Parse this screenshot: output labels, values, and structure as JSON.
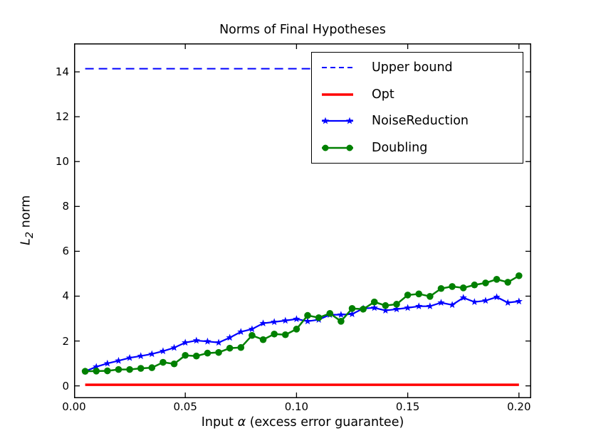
{
  "title": "Norms of Final Hypotheses",
  "x_axis": {
    "label_prefix": "Input ",
    "label_alpha": "α",
    "label_suffix": " (excess error guarantee)"
  },
  "y_axis": {
    "label_math": "L",
    "label_sub": "2",
    "label_rest": " norm"
  },
  "chart_data": {
    "type": "line",
    "title": "Norms of Final Hypotheses",
    "xlabel": "Input α (excess error guarantee)",
    "ylabel": "L2 norm",
    "xlim": [
      0,
      0.2055
    ],
    "ylim": [
      -0.55,
      15.27
    ],
    "grid": false,
    "legend_position": "upper right",
    "xticks": {
      "values": [
        0.0,
        0.05,
        0.1,
        0.15,
        0.2
      ],
      "labels": [
        "0.00",
        "0.05",
        "0.10",
        "0.15",
        "0.20"
      ]
    },
    "yticks": {
      "values": [
        0,
        2,
        4,
        6,
        8,
        10,
        12,
        14
      ],
      "labels": [
        "0",
        "2",
        "4",
        "6",
        "8",
        "10",
        "12",
        "14"
      ]
    },
    "x": [
      0.005,
      0.01,
      0.015,
      0.02,
      0.025,
      0.03,
      0.035,
      0.04,
      0.045,
      0.05,
      0.055,
      0.06,
      0.065,
      0.07,
      0.075,
      0.08,
      0.085,
      0.09,
      0.095,
      0.1,
      0.105,
      0.11,
      0.115,
      0.12,
      0.125,
      0.13,
      0.135,
      0.14,
      0.145,
      0.15,
      0.155,
      0.16,
      0.165,
      0.17,
      0.175,
      0.18,
      0.185,
      0.19,
      0.195,
      0.2
    ],
    "series": [
      {
        "name": "Upper bound",
        "color": "#0000ff",
        "style": "dashed",
        "line_width": 2,
        "marker": "none",
        "constant": 14.14
      },
      {
        "name": "Opt",
        "color": "#ff0000",
        "style": "solid",
        "line_width": 3.5,
        "marker": "none",
        "constant": 0.05
      },
      {
        "name": "NoiseReduction",
        "color": "#0000ff",
        "style": "solid",
        "line_width": 2.2,
        "marker": "star",
        "values": [
          0.65,
          0.85,
          1.0,
          1.12,
          1.25,
          1.33,
          1.42,
          1.55,
          1.7,
          1.93,
          2.02,
          1.98,
          1.93,
          2.15,
          2.41,
          2.53,
          2.79,
          2.85,
          2.91,
          2.98,
          2.88,
          2.95,
          3.17,
          3.17,
          3.2,
          3.45,
          3.48,
          3.36,
          3.42,
          3.48,
          3.55,
          3.55,
          3.71,
          3.61,
          3.93,
          3.74,
          3.8,
          3.96,
          3.71,
          3.77
        ]
      },
      {
        "name": "Doubling",
        "color": "#008000",
        "style": "solid",
        "line_width": 2.5,
        "marker": "circle",
        "values": [
          0.65,
          0.66,
          0.67,
          0.73,
          0.73,
          0.78,
          0.81,
          1.05,
          0.98,
          1.36,
          1.33,
          1.46,
          1.49,
          1.68,
          1.71,
          2.25,
          2.06,
          2.31,
          2.28,
          2.53,
          3.14,
          3.04,
          3.23,
          2.88,
          3.45,
          3.42,
          3.74,
          3.58,
          3.64,
          4.05,
          4.1,
          3.99,
          4.34,
          4.43,
          4.37,
          4.5,
          4.59,
          4.75,
          4.62,
          4.91
        ]
      }
    ]
  }
}
